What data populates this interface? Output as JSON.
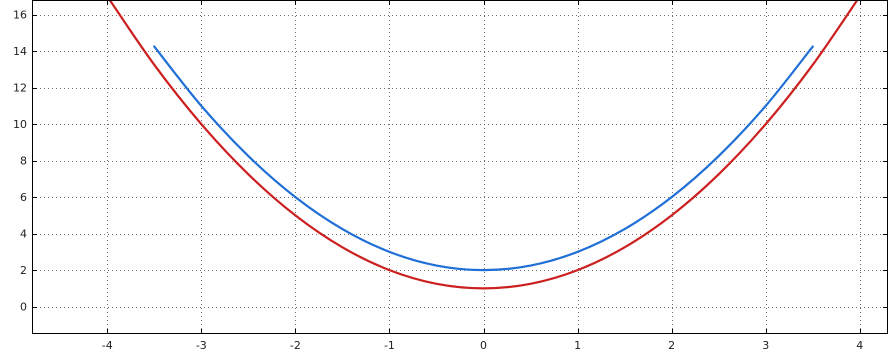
{
  "chart_data": {
    "type": "line",
    "title": "",
    "xlabel": "",
    "ylabel": "",
    "xlim": [
      -4.8,
      4.3
    ],
    "ylim": [
      -1.5,
      16.8
    ],
    "xticks": [
      -4,
      -3,
      -2,
      -1,
      0,
      1,
      2,
      3,
      4
    ],
    "yticks": [
      0,
      2,
      4,
      6,
      8,
      10,
      12,
      14,
      16
    ],
    "xtick_labels": [
      "-4",
      "-3",
      "-2",
      "-1",
      "0",
      "1",
      "2",
      "3",
      "4"
    ],
    "ytick_labels": [
      "0",
      "2",
      "4",
      "6",
      "8",
      "10",
      "12",
      "14",
      "16"
    ],
    "grid": true,
    "legend": "none",
    "series": [
      {
        "color": "#cc1f1f",
        "formula": "y = x^2 + 1",
        "x": [
          -4.0,
          -3.5,
          -3.0,
          -2.5,
          -2.0,
          -1.5,
          -1.0,
          -0.5,
          0.0,
          0.5,
          1.0,
          1.5,
          2.0,
          2.5,
          3.0,
          3.5,
          4.0
        ],
        "y": [
          17.0,
          13.25,
          10.0,
          7.25,
          5.0,
          3.25,
          2.0,
          1.25,
          1.0,
          1.25,
          2.0,
          3.25,
          5.0,
          7.25,
          10.0,
          13.25,
          17.0
        ]
      },
      {
        "color": "#1f6fd6",
        "formula": "y = x^2 + 2",
        "x": [
          -3.5,
          -3.0,
          -2.5,
          -2.0,
          -1.5,
          -1.0,
          -0.5,
          0.0,
          0.5,
          1.0,
          1.5,
          2.0,
          2.5,
          3.0,
          3.5
        ],
        "y": [
          14.25,
          11.0,
          8.25,
          6.0,
          4.25,
          3.0,
          2.25,
          2.0,
          2.25,
          3.0,
          4.25,
          6.0,
          8.25,
          11.0,
          14.25
        ]
      }
    ]
  }
}
